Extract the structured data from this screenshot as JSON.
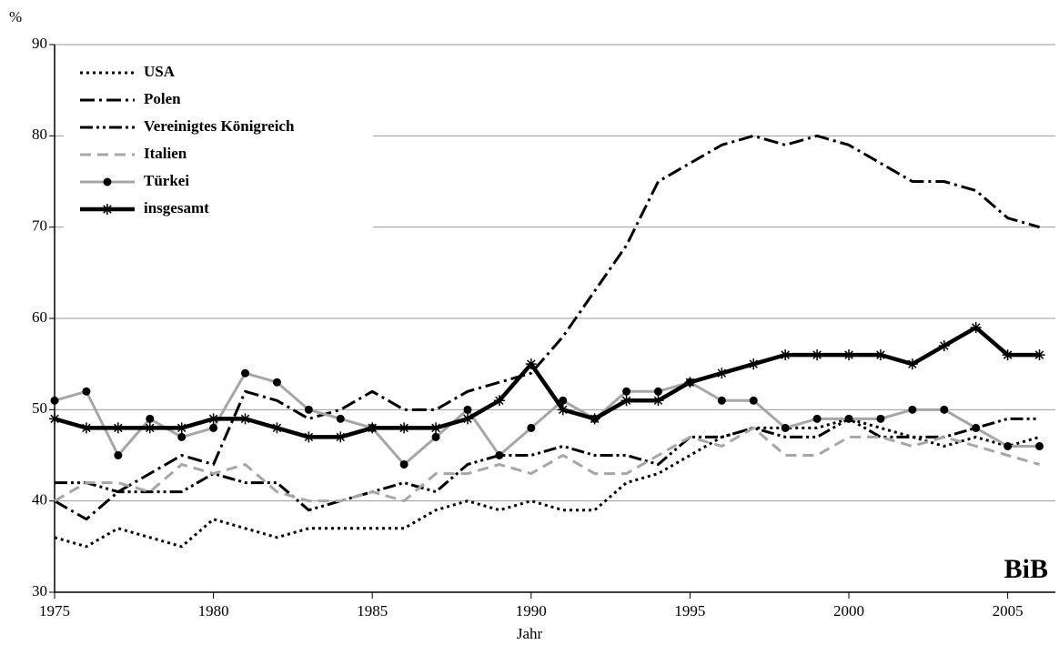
{
  "chart_data": {
    "type": "line",
    "y_unit": "%",
    "x_label": "Jahr",
    "annotation": "BiB",
    "x": [
      1975,
      1976,
      1977,
      1978,
      1979,
      1980,
      1981,
      1982,
      1983,
      1984,
      1985,
      1986,
      1987,
      1988,
      1989,
      1990,
      1991,
      1992,
      1993,
      1994,
      1995,
      1996,
      1997,
      1998,
      1999,
      2000,
      2001,
      2002,
      2003,
      2004,
      2005,
      2006
    ],
    "xlim": [
      1975,
      2006.5
    ],
    "xticks": [
      1975,
      1980,
      1985,
      1990,
      1995,
      2000,
      2005
    ],
    "ylim": [
      30,
      90
    ],
    "yticks": [
      30,
      40,
      50,
      60,
      70,
      80,
      90
    ],
    "grid": true,
    "legend": "upper left",
    "series": [
      {
        "name": "USA",
        "color": "#000000",
        "values": [
          36,
          35,
          37,
          36,
          35,
          38,
          37,
          36,
          37,
          37,
          37,
          37,
          39,
          40,
          39,
          40,
          39,
          39,
          42,
          43,
          45,
          47,
          48,
          48,
          48,
          49,
          48,
          47,
          46,
          47,
          46,
          47
        ]
      },
      {
        "name": "Polen",
        "color": "#000000",
        "values": [
          40,
          38,
          41,
          43,
          45,
          44,
          52,
          51,
          49,
          50,
          52,
          50,
          50,
          52,
          53,
          54,
          58,
          63,
          68,
          75,
          77,
          79,
          80,
          79,
          80,
          79,
          77,
          75,
          75,
          74,
          71,
          70
        ]
      },
      {
        "name": "Vereinigtes Königreich",
        "color": "#000000",
        "values": [
          42,
          42,
          41,
          41,
          41,
          43,
          42,
          42,
          39,
          40,
          41,
          42,
          41,
          44,
          45,
          45,
          46,
          45,
          45,
          44,
          47,
          47,
          48,
          47,
          47,
          49,
          47,
          47,
          47,
          48,
          49,
          49
        ]
      },
      {
        "name": "Italien",
        "color": "#a6a6a6",
        "values": [
          40,
          42,
          42,
          41,
          44,
          43,
          44,
          41,
          40,
          40,
          41,
          40,
          43,
          43,
          44,
          43,
          45,
          43,
          43,
          45,
          47,
          46,
          48,
          45,
          45,
          47,
          47,
          46,
          47,
          46,
          45,
          44
        ]
      },
      {
        "name": "Türkei",
        "color": "#a6a6a6",
        "values": [
          51,
          52,
          45,
          49,
          47,
          48,
          54,
          53,
          50,
          49,
          48,
          44,
          47,
          50,
          45,
          48,
          51,
          49,
          52,
          52,
          53,
          51,
          51,
          48,
          49,
          49,
          49,
          50,
          50,
          48,
          46,
          46
        ]
      },
      {
        "name": "insgesamt",
        "color": "#000000",
        "values": [
          49,
          48,
          48,
          48,
          48,
          49,
          49,
          48,
          47,
          47,
          48,
          48,
          48,
          49,
          51,
          55,
          50,
          49,
          51,
          51,
          53,
          54,
          55,
          56,
          56,
          56,
          56,
          55,
          57,
          59,
          56,
          56
        ]
      }
    ]
  }
}
